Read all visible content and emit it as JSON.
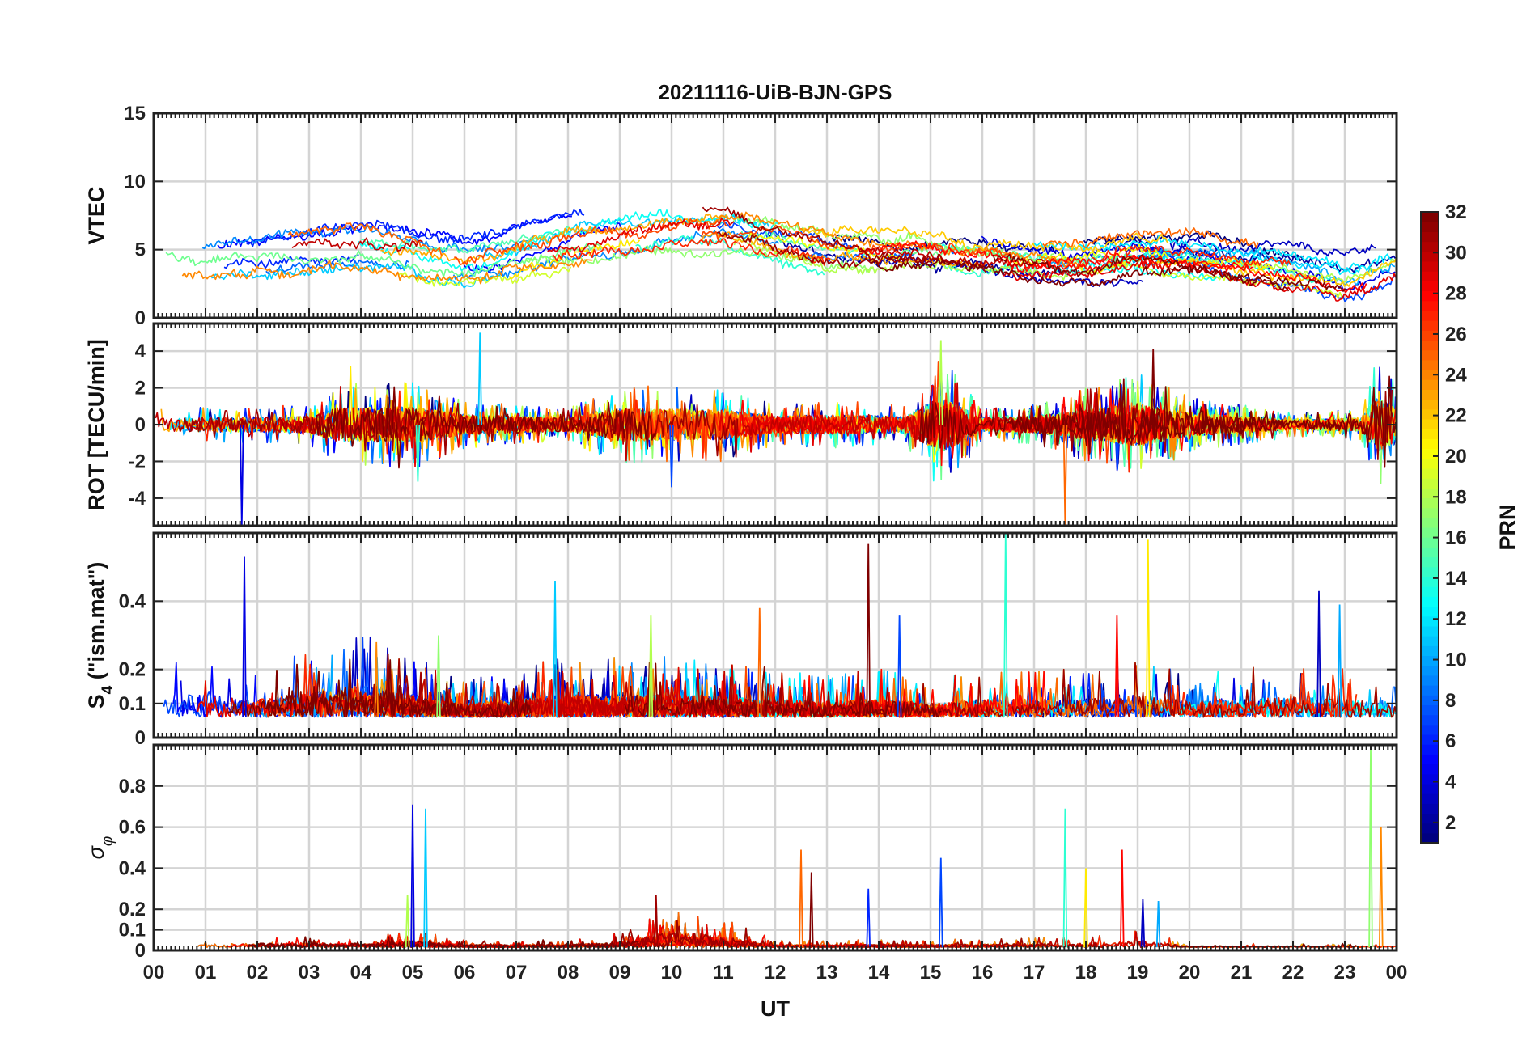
{
  "chart_data": {
    "title": "20211116-UiB-BJN-GPS",
    "type": "line",
    "x_axis": {
      "label": "UT",
      "range": [
        0,
        24
      ],
      "tick_labels": [
        "00",
        "01",
        "02",
        "03",
        "04",
        "05",
        "06",
        "07",
        "08",
        "09",
        "10",
        "11",
        "12",
        "13",
        "14",
        "15",
        "16",
        "17",
        "18",
        "19",
        "20",
        "21",
        "22",
        "23",
        "00"
      ]
    },
    "colorbar": {
      "label": "PRN",
      "range": [
        1,
        32
      ],
      "colormap": "jet",
      "ticks": [
        2,
        4,
        6,
        8,
        10,
        12,
        14,
        16,
        18,
        20,
        22,
        24,
        26,
        28,
        30,
        32
      ]
    },
    "grid": true,
    "panels": [
      {
        "id": "vtec",
        "ylabel": "VTEC",
        "ylim": [
          0,
          15
        ],
        "yticks": [
          0,
          5,
          10,
          15
        ],
        "ytick_labels": [
          "0",
          "5",
          "10",
          "15"
        ],
        "trend": [
          [
            0,
            4.3
          ],
          [
            1,
            3.9
          ],
          [
            2,
            4.3
          ],
          [
            3,
            4.8
          ],
          [
            4,
            5.0
          ],
          [
            5,
            4.4
          ],
          [
            6,
            3.8
          ],
          [
            7,
            4.6
          ],
          [
            8,
            5.6
          ],
          [
            9,
            6.0
          ],
          [
            10,
            6.6
          ],
          [
            11,
            6.7
          ],
          [
            12,
            6.1
          ],
          [
            13,
            5.3
          ],
          [
            14,
            5.0
          ],
          [
            15,
            5.0
          ],
          [
            16,
            4.6
          ],
          [
            17,
            4.1
          ],
          [
            18,
            4.1
          ],
          [
            19,
            4.6
          ],
          [
            20,
            4.4
          ],
          [
            21,
            3.9
          ],
          [
            22,
            3.4
          ],
          [
            23,
            2.6
          ],
          [
            24,
            4.0
          ]
        ],
        "spread": 1.4,
        "noise": 0.25,
        "spikes": []
      },
      {
        "id": "rot",
        "ylabel": "ROT [TECU/min]",
        "ylim": [
          -5.5,
          5.5
        ],
        "yticks": [
          -4,
          -2,
          0,
          2,
          4
        ],
        "ytick_labels": [
          "-4",
          "-2",
          "0",
          "2",
          "4"
        ],
        "activity": [
          [
            0,
            0.4
          ],
          [
            3,
            0.5
          ],
          [
            3.5,
            1.0
          ],
          [
            5,
            1.1
          ],
          [
            6,
            0.6
          ],
          [
            8,
            0.4
          ],
          [
            9,
            1.0
          ],
          [
            11,
            0.9
          ],
          [
            12,
            0.5
          ],
          [
            13,
            0.6
          ],
          [
            14.5,
            0.5
          ],
          [
            15.2,
            1.7
          ],
          [
            16,
            0.4
          ],
          [
            17,
            0.5
          ],
          [
            18,
            0.9
          ],
          [
            19,
            1.3
          ],
          [
            20,
            0.7
          ],
          [
            22,
            0.3
          ],
          [
            23.3,
            0.4
          ],
          [
            23.6,
            1.6
          ],
          [
            24,
            1.2
          ]
        ],
        "spikes": [
          [
            1.7,
            -5.5
          ],
          [
            6.3,
            5.0
          ],
          [
            15.2,
            4.6
          ],
          [
            17.6,
            -5.5
          ],
          [
            19.3,
            4.1
          ],
          [
            10.0,
            -3.4
          ],
          [
            5.1,
            -3.1
          ],
          [
            3.8,
            3.2
          ]
        ]
      },
      {
        "id": "s4",
        "ylabel": "S4 (\"ism.mat\")",
        "ylabel_main": "S",
        "ylabel_sub": "4",
        "ylabel_rest": " (\"ism.mat\")",
        "ylim": [
          0,
          0.6
        ],
        "yticks": [
          0,
          0.1,
          0.2,
          0.4
        ],
        "ytick_labels": [
          "0",
          "0.1",
          "0.2",
          "0.4"
        ],
        "baseline": 0.06,
        "activity": [
          [
            0,
            0.12
          ],
          [
            1,
            0.1
          ],
          [
            2,
            0.08
          ],
          [
            4,
            0.14
          ],
          [
            5,
            0.1
          ],
          [
            6,
            0.06
          ],
          [
            7,
            0.08
          ],
          [
            8,
            0.1
          ],
          [
            10,
            0.1
          ],
          [
            12,
            0.08
          ],
          [
            13,
            0.07
          ],
          [
            14,
            0.08
          ],
          [
            15,
            0.06
          ],
          [
            16,
            0.08
          ],
          [
            18,
            0.08
          ],
          [
            19,
            0.1
          ],
          [
            20,
            0.07
          ],
          [
            22,
            0.09
          ],
          [
            23,
            0.08
          ],
          [
            24,
            0.06
          ]
        ],
        "spikes": [
          [
            1.75,
            0.53
          ],
          [
            7.75,
            0.46
          ],
          [
            9.6,
            0.36
          ],
          [
            11.7,
            0.38
          ],
          [
            13.8,
            0.57
          ],
          [
            14.4,
            0.36
          ],
          [
            16.45,
            0.6
          ],
          [
            19.2,
            0.58
          ],
          [
            18.6,
            0.36
          ],
          [
            22.5,
            0.43
          ],
          [
            22.9,
            0.39
          ],
          [
            5.5,
            0.3
          ],
          [
            4.3,
            0.28
          ]
        ]
      },
      {
        "id": "sigma_phi",
        "ylabel": "σ φ",
        "ylabel_main": "σ",
        "ylabel_sub": "φ",
        "ylim": [
          0,
          1.0
        ],
        "yticks": [
          0,
          0.1,
          0.2,
          0.4,
          0.6,
          0.8
        ],
        "ytick_labels": [
          "0",
          "0.1",
          "0.2",
          "0.4",
          "0.6",
          "0.8"
        ],
        "baseline": 0.015,
        "activity": [
          [
            0,
            0.02
          ],
          [
            2,
            0.03
          ],
          [
            4,
            0.03
          ],
          [
            5,
            0.05
          ],
          [
            6,
            0.02
          ],
          [
            8,
            0.02
          ],
          [
            9,
            0.04
          ],
          [
            10,
            0.12
          ],
          [
            11,
            0.08
          ],
          [
            12,
            0.02
          ],
          [
            15,
            0.02
          ],
          [
            18,
            0.03
          ],
          [
            19,
            0.05
          ],
          [
            20,
            0.01
          ],
          [
            23,
            0.01
          ],
          [
            24,
            0.01
          ]
        ],
        "spikes": [
          [
            5.0,
            0.71
          ],
          [
            5.25,
            0.69
          ],
          [
            4.9,
            0.27
          ],
          [
            12.5,
            0.49
          ],
          [
            12.7,
            0.38
          ],
          [
            15.2,
            0.45
          ],
          [
            17.6,
            0.69
          ],
          [
            18.0,
            0.4
          ],
          [
            18.7,
            0.49
          ],
          [
            19.1,
            0.25
          ],
          [
            19.4,
            0.24
          ],
          [
            23.5,
            0.98
          ],
          [
            23.7,
            0.6
          ],
          [
            9.7,
            0.27
          ],
          [
            13.8,
            0.3
          ]
        ]
      }
    ]
  }
}
